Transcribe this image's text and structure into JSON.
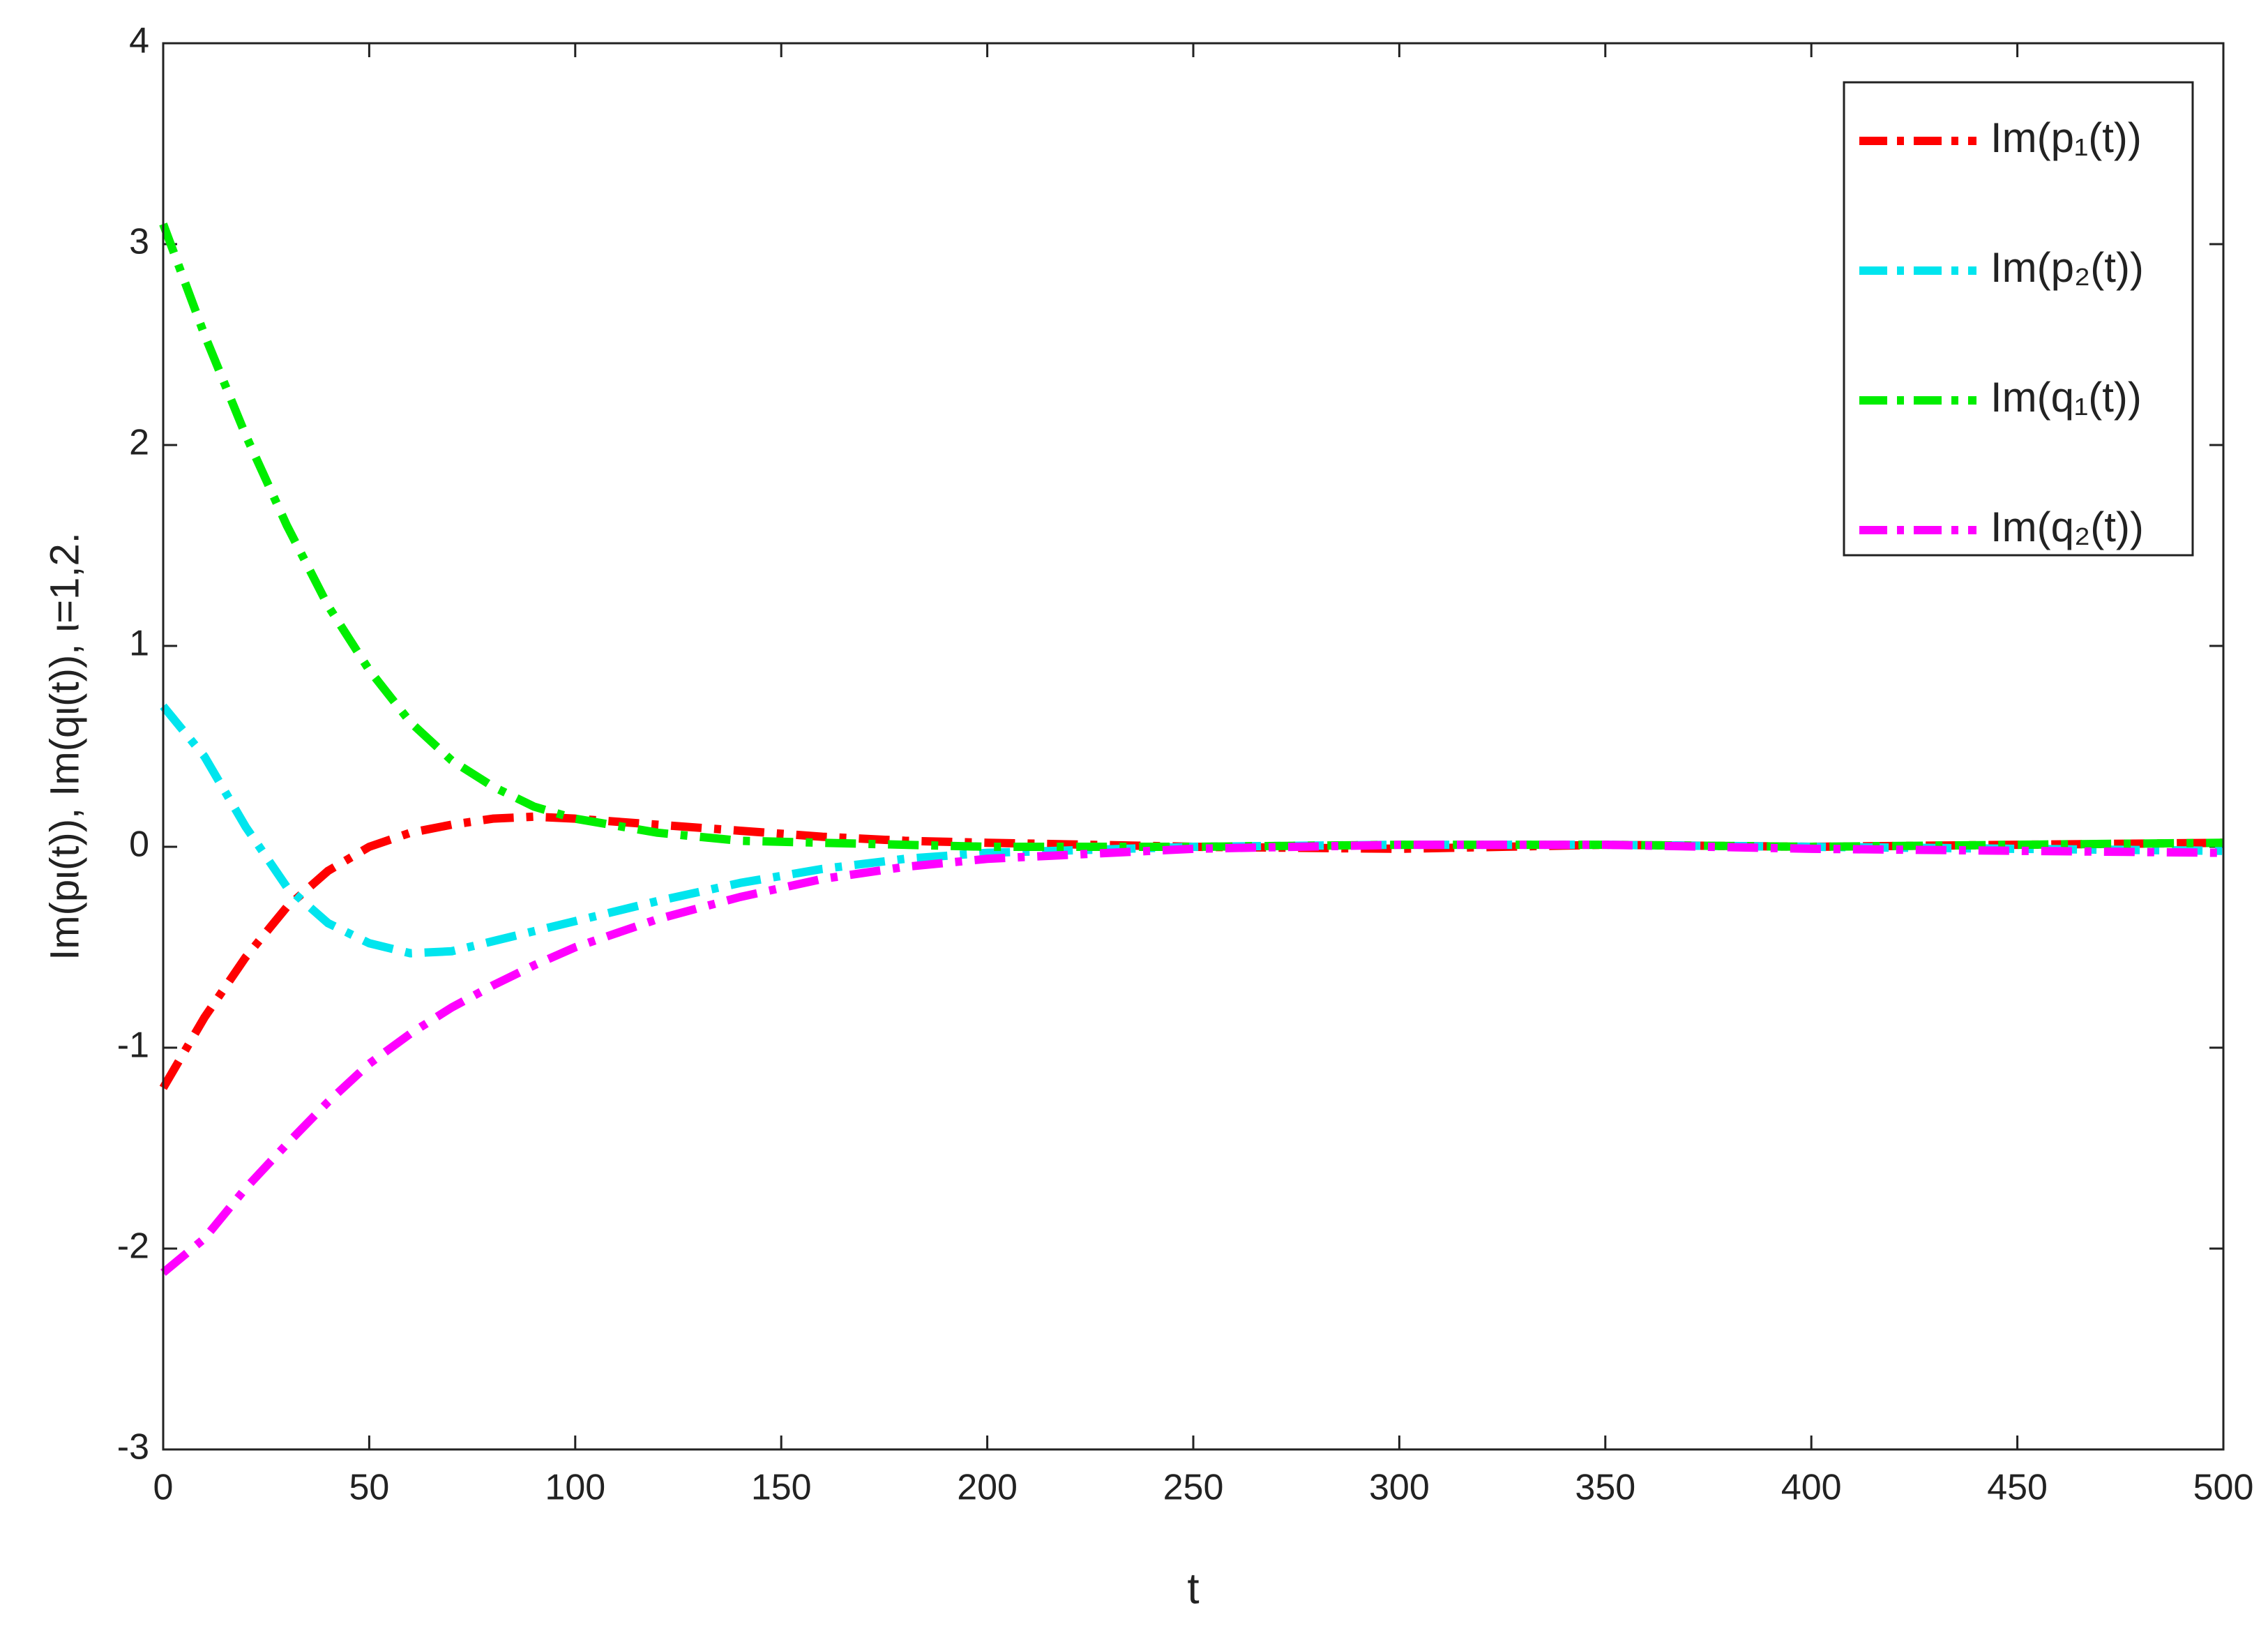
{
  "chart_data": {
    "type": "line",
    "xlabel": "t",
    "ylabel": "Im(pι(t)), Im(qι(t)), ι=1,2.",
    "x": [
      0,
      10,
      20,
      30,
      40,
      50,
      60,
      70,
      80,
      90,
      100,
      120,
      140,
      160,
      180,
      200,
      250,
      300,
      350,
      400,
      450,
      500
    ],
    "series": [
      {
        "name": "Im(p₁(t))",
        "color": "#ff0000",
        "values": [
          -1.2,
          -0.85,
          -0.55,
          -0.3,
          -0.12,
          0.0,
          0.07,
          0.11,
          0.14,
          0.15,
          0.14,
          0.11,
          0.08,
          0.05,
          0.03,
          0.02,
          0.0,
          -0.01,
          0.01,
          0.0,
          0.01,
          0.02
        ]
      },
      {
        "name": "Im(p₂(t))",
        "color": "#00e5ee",
        "values": [
          0.7,
          0.45,
          0.1,
          -0.2,
          -0.38,
          -0.48,
          -0.53,
          -0.52,
          -0.47,
          -0.42,
          -0.37,
          -0.27,
          -0.18,
          -0.11,
          -0.06,
          -0.03,
          0.0,
          0.01,
          0.01,
          0.0,
          -0.01,
          -0.02
        ]
      },
      {
        "name": "Im(q₁(t))",
        "color": "#00ee00",
        "values": [
          3.1,
          2.55,
          2.05,
          1.6,
          1.2,
          0.88,
          0.62,
          0.43,
          0.3,
          0.2,
          0.14,
          0.07,
          0.03,
          0.02,
          0.01,
          0.0,
          0.0,
          0.01,
          0.01,
          0.0,
          0.01,
          0.02
        ]
      },
      {
        "name": "Im(q₂(t))",
        "color": "#ff00ff",
        "values": [
          -2.12,
          -1.95,
          -1.7,
          -1.48,
          -1.27,
          -1.08,
          -0.93,
          -0.8,
          -0.69,
          -0.59,
          -0.5,
          -0.36,
          -0.25,
          -0.16,
          -0.1,
          -0.06,
          -0.01,
          0.01,
          0.01,
          -0.01,
          -0.02,
          -0.03
        ]
      }
    ],
    "xlim": [
      0,
      500
    ],
    "xticks": [
      0,
      50,
      100,
      150,
      200,
      250,
      300,
      350,
      400,
      450,
      500
    ],
    "ylim": [
      -3,
      4
    ],
    "yticks": [
      -3,
      -2,
      -1,
      0,
      1,
      2,
      3,
      4
    ],
    "legend": "upper right",
    "grid": false
  }
}
